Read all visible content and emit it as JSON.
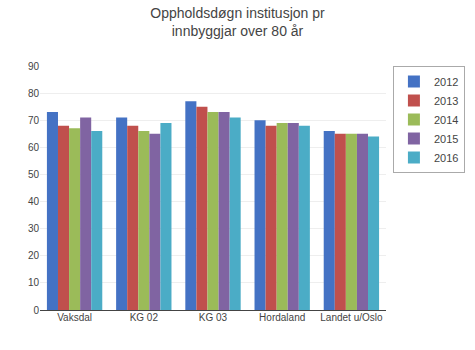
{
  "chart_data": {
    "type": "bar",
    "title": "Oppholdsdøgn institusjon pr\ninnbyggjar over 80 år",
    "categories": [
      "Vaksdal",
      "KG 02",
      "KG 03",
      "Hordaland",
      "Landet u/Oslo"
    ],
    "series": [
      {
        "name": "2012",
        "color": "#4472C4",
        "values": [
          73,
          71,
          77,
          70,
          66
        ]
      },
      {
        "name": "2013",
        "color": "#C0504D",
        "values": [
          68,
          68,
          75,
          68,
          65
        ]
      },
      {
        "name": "2014",
        "color": "#9BBB59",
        "values": [
          67,
          66,
          73,
          69,
          65
        ]
      },
      {
        "name": "2015",
        "color": "#8064A2",
        "values": [
          71,
          65,
          73,
          69,
          65
        ]
      },
      {
        "name": "2016",
        "color": "#4BACC6",
        "values": [
          66,
          69,
          71,
          68,
          64
        ]
      }
    ],
    "ylim": [
      0,
      90
    ],
    "yticks": [
      0,
      10,
      20,
      30,
      40,
      50,
      60,
      70,
      80,
      90
    ],
    "grid": true,
    "legend": "right"
  }
}
